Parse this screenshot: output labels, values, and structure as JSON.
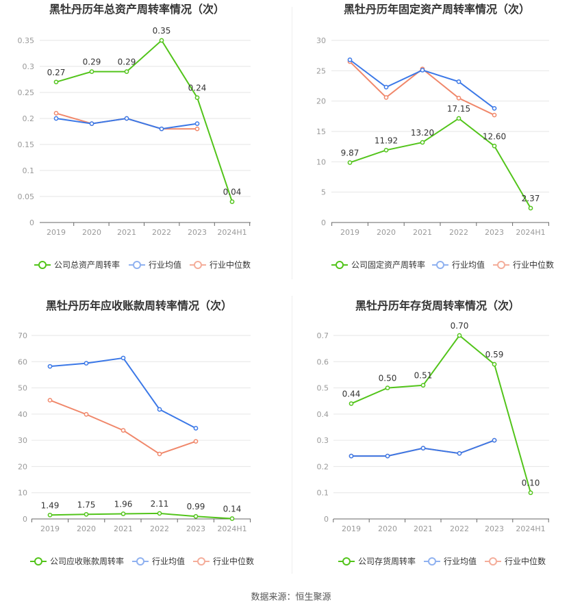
{
  "source_label": "数据来源：恒生聚源",
  "colors": {
    "company": "#52c41a",
    "avg": "#3b78e7",
    "median": "#f0876a",
    "axis": "#999999",
    "grid": "#e6e6e6"
  },
  "chart_data": [
    {
      "type": "line",
      "title": "黑牡丹历年总资产周转率情况（次）",
      "categories": [
        "2019",
        "2020",
        "2021",
        "2022",
        "2023",
        "2024H1"
      ],
      "ylim": [
        0,
        0.35
      ],
      "yticks": [
        0,
        0.05,
        0.1,
        0.15,
        0.2,
        0.25,
        0.3,
        0.35
      ],
      "ytick_labels": [
        "0",
        "0.05",
        "0.1",
        "0.15",
        "0.2",
        "0.25",
        "0.3",
        "0.35"
      ],
      "grid": true,
      "legend": "bottom",
      "series": [
        {
          "name": "公司总资产周转率",
          "role": "company",
          "values": [
            0.27,
            0.29,
            0.29,
            0.35,
            0.24,
            0.04
          ],
          "labels": [
            "0.27",
            "0.29",
            "0.29",
            "0.35",
            "0.24",
            "0.04"
          ]
        },
        {
          "name": "行业均值",
          "role": "avg",
          "values": [
            0.2,
            0.19,
            0.2,
            0.18,
            0.19,
            null
          ]
        },
        {
          "name": "行业中位数",
          "role": "median",
          "values": [
            0.21,
            0.19,
            0.2,
            0.18,
            0.18,
            null
          ]
        }
      ]
    },
    {
      "type": "line",
      "title": "黑牡丹历年固定资产周转率情况（次）",
      "categories": [
        "2019",
        "2020",
        "2021",
        "2022",
        "2023",
        "2024H1"
      ],
      "ylim": [
        0,
        30
      ],
      "yticks": [
        0,
        5,
        10,
        15,
        20,
        25,
        30
      ],
      "ytick_labels": [
        "0",
        "5",
        "10",
        "15",
        "20",
        "25",
        "30"
      ],
      "grid": true,
      "legend": "bottom",
      "series": [
        {
          "name": "公司固定资产周转率",
          "role": "company",
          "values": [
            9.87,
            11.92,
            13.2,
            17.15,
            12.6,
            2.37
          ],
          "labels": [
            "9.87",
            "11.92",
            "13.20",
            "17.15",
            "12.60",
            "2.37"
          ]
        },
        {
          "name": "行业均值",
          "role": "avg",
          "values": [
            26.8,
            22.3,
            25.1,
            23.2,
            18.8,
            null
          ]
        },
        {
          "name": "行业中位数",
          "role": "median",
          "values": [
            26.5,
            20.6,
            25.3,
            20.5,
            17.7,
            null
          ]
        }
      ]
    },
    {
      "type": "line",
      "title": "黑牡丹历年应收账款周转率情况（次）",
      "categories": [
        "2019",
        "2020",
        "2021",
        "2022",
        "2023",
        "2024H1"
      ],
      "ylim": [
        0,
        70
      ],
      "yticks": [
        0,
        10,
        20,
        30,
        40,
        50,
        60,
        70
      ],
      "ytick_labels": [
        "0",
        "10",
        "20",
        "30",
        "40",
        "50",
        "60",
        "70"
      ],
      "grid": true,
      "legend": "bottom",
      "series": [
        {
          "name": "公司应收账款周转率",
          "role": "company",
          "values": [
            1.49,
            1.75,
            1.96,
            2.11,
            0.99,
            0.14
          ],
          "labels": [
            "1.49",
            "1.75",
            "1.96",
            "2.11",
            "0.99",
            "0.14"
          ]
        },
        {
          "name": "行业均值",
          "role": "avg",
          "values": [
            58.2,
            59.4,
            61.4,
            41.8,
            34.6,
            null
          ]
        },
        {
          "name": "行业中位数",
          "role": "median",
          "values": [
            45.3,
            39.9,
            33.8,
            24.8,
            29.6,
            null
          ]
        }
      ]
    },
    {
      "type": "line",
      "title": "黑牡丹历年存货周转率情况（次）",
      "categories": [
        "2019",
        "2020",
        "2021",
        "2022",
        "2023",
        "2024H1"
      ],
      "ylim": [
        0,
        0.7
      ],
      "yticks": [
        0,
        0.1,
        0.2,
        0.3,
        0.4,
        0.5,
        0.6,
        0.7
      ],
      "ytick_labels": [
        "0",
        "0.1",
        "0.2",
        "0.3",
        "0.4",
        "0.5",
        "0.6",
        "0.7"
      ],
      "grid": true,
      "legend": "bottom",
      "series": [
        {
          "name": "公司存货周转率",
          "role": "company",
          "values": [
            0.44,
            0.5,
            0.51,
            0.7,
            0.59,
            0.1
          ],
          "labels": [
            "0.44",
            "0.50",
            "0.51",
            "0.70",
            "0.59",
            "0.10"
          ]
        },
        {
          "name": "行业均值",
          "role": "avg",
          "values": [
            0.24,
            0.24,
            0.27,
            0.25,
            0.3,
            null
          ]
        },
        {
          "name": "行业中位数",
          "role": "median",
          "values": [
            0.24,
            0.24,
            0.27,
            0.25,
            0.3,
            null
          ]
        }
      ]
    }
  ]
}
